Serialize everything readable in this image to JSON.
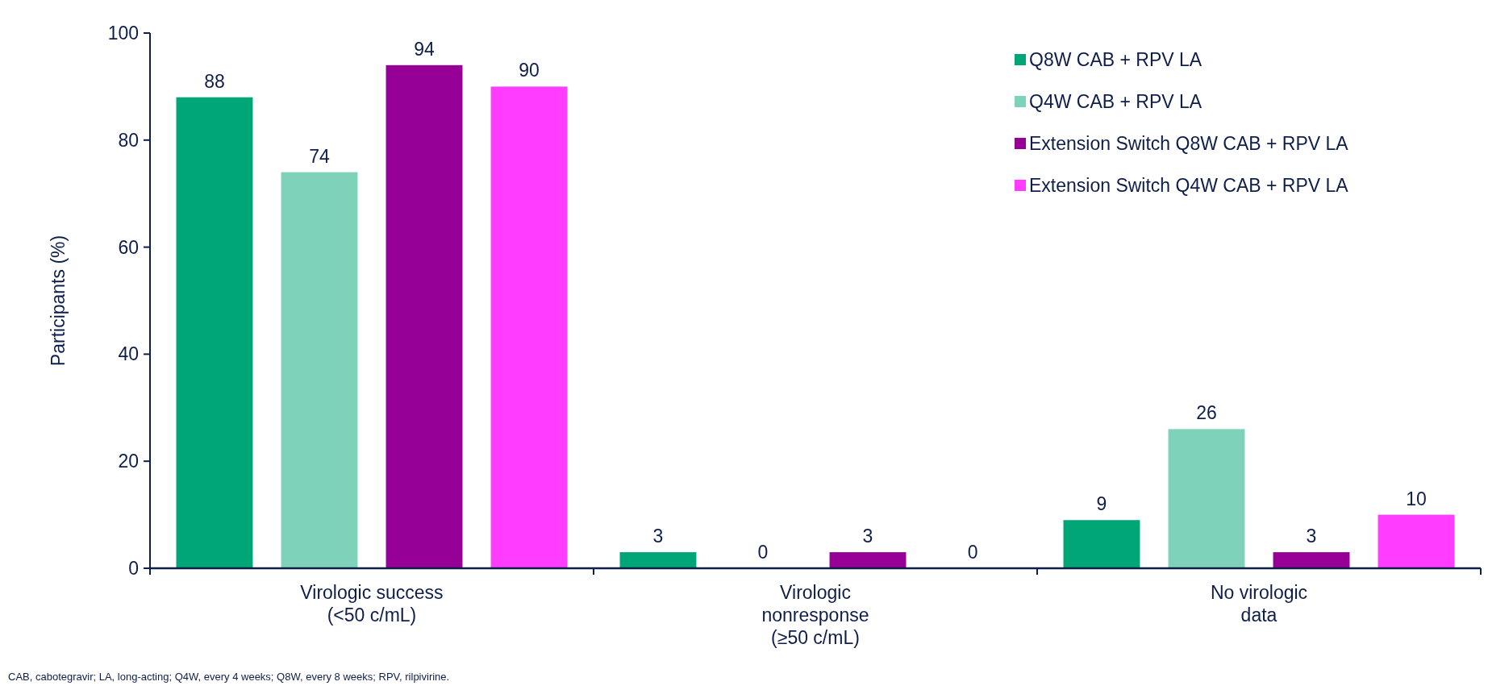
{
  "chart_data": {
    "type": "bar",
    "ylabel": "Participants (%)",
    "categories": [
      "Virologic success\n(<50 c/mL)",
      "Virologic\nnonresponse\n(≥50 c/mL)",
      "No virologic\ndata"
    ],
    "series": [
      {
        "name": "Q8W CAB + RPV LA",
        "color": "#00a676",
        "values": [
          88,
          3,
          9
        ]
      },
      {
        "name": "Q4W CAB + RPV LA",
        "color": "#7fd2ba",
        "values": [
          74,
          0,
          26
        ]
      },
      {
        "name": "Extension Switch Q8W CAB + RPV LA",
        "color": "#960096",
        "values": [
          94,
          3,
          3
        ]
      },
      {
        "name": "Extension Switch Q4W CAB + RPV LA",
        "color": "#ff3cff",
        "values": [
          90,
          0,
          10
        ]
      }
    ],
    "ylim": [
      0,
      100
    ],
    "yticks": [
      0,
      20,
      40,
      60,
      80,
      100
    ],
    "data_labels": true,
    "legend": "top right",
    "grid": false,
    "annotations": [
      "CAB, cabotegravir; LA, long-acting; Q4W, every 4 weeks; Q8W, every 8 weeks; RPV, rilpivirine."
    ]
  }
}
